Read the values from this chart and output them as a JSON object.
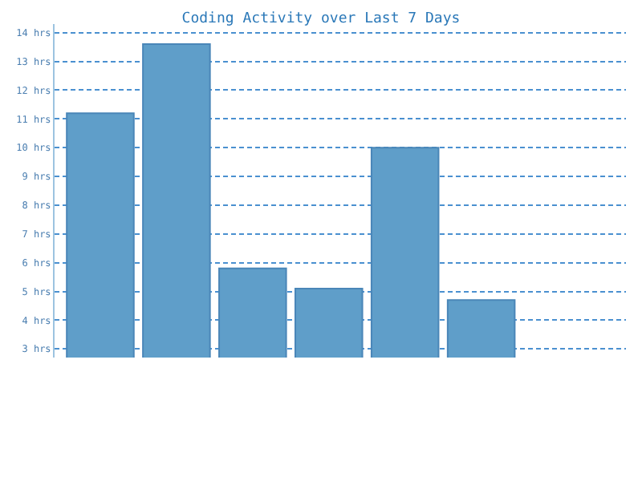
{
  "chart_data": {
    "type": "bar",
    "title": "Coding Activity over Last 7 Days",
    "categories": [
      null,
      null,
      null,
      null,
      null,
      null,
      null
    ],
    "values": [
      11.2,
      13.6,
      5.8,
      5.1,
      10.0,
      4.7,
      null
    ],
    "color": "#5f9ec9",
    "ylim": [
      2.7,
      14.3
    ],
    "yticks": [
      {
        "value": 3,
        "label": "3 hrs"
      },
      {
        "value": 4,
        "label": "4 hrs"
      },
      {
        "value": 5,
        "label": "5 hrs"
      },
      {
        "value": 6,
        "label": "6 hrs"
      },
      {
        "value": 7,
        "label": "7 hrs"
      },
      {
        "value": 8,
        "label": "8 hrs"
      },
      {
        "value": 9,
        "label": "9 hrs"
      },
      {
        "value": 10,
        "label": "10 hrs"
      },
      {
        "value": 11,
        "label": "11 hrs"
      },
      {
        "value": 12,
        "label": "12 hrs"
      },
      {
        "value": 13,
        "label": "13 hrs"
      },
      {
        "value": 14,
        "label": "14 hrs"
      }
    ],
    "grid": "y",
    "line_style": "dashed"
  }
}
